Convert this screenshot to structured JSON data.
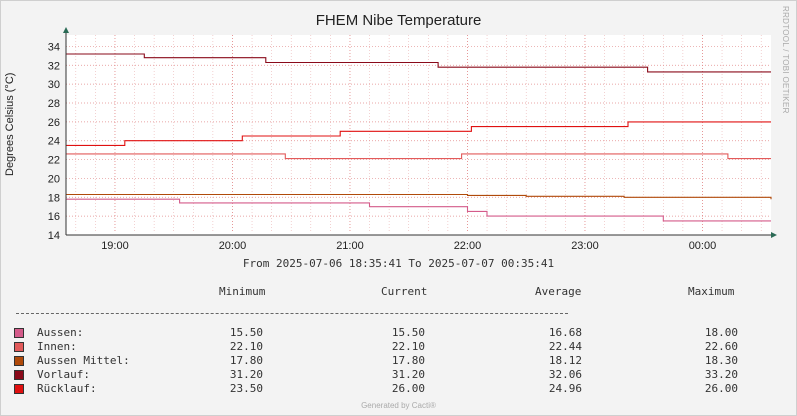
{
  "chart_data": {
    "type": "line",
    "title": "FHEM Nibe Temperature",
    "ylabel": "Degrees Celsius (°C)",
    "ylim": [
      14,
      35
    ],
    "yticks": [
      14,
      16,
      18,
      20,
      22,
      24,
      26,
      28,
      30,
      32,
      34
    ],
    "xlim": [
      "18:35",
      "00:35"
    ],
    "xticks": [
      "19:00",
      "20:00",
      "21:00",
      "22:00",
      "23:00",
      "00:00"
    ],
    "range_label": "From 2025-07-06 18:35:41 To 2025-07-07 00:35:41",
    "grid": true,
    "series": [
      {
        "name": "Aussen",
        "color": "#d45b8a",
        "x": [
          "18:35",
          "19:30",
          "19:33",
          "21:00",
          "21:10",
          "22:00",
          "22:10",
          "23:00",
          "23:40",
          "00:35"
        ],
        "y": [
          17.8,
          17.8,
          17.4,
          17.4,
          17.0,
          16.5,
          16.0,
          16.0,
          15.5,
          15.5
        ]
      },
      {
        "name": "Innen",
        "color": "#e25a5a",
        "x": [
          "18:35",
          "20:20",
          "20:27",
          "21:50",
          "21:57",
          "00:10",
          "00:13",
          "00:35"
        ],
        "y": [
          22.6,
          22.6,
          22.1,
          22.1,
          22.6,
          22.6,
          22.1,
          22.1
        ]
      },
      {
        "name": "Aussen Mittel",
        "color": "#b04a0a",
        "x": [
          "18:35",
          "20:35",
          "22:00",
          "22:30",
          "23:20",
          "00:35"
        ],
        "y": [
          18.3,
          18.3,
          18.2,
          18.1,
          18.0,
          17.8
        ]
      },
      {
        "name": "Vorlauf",
        "color": "#8a0a1a",
        "x": [
          "18:35",
          "19:10",
          "19:15",
          "20:10",
          "20:17",
          "21:40",
          "21:45",
          "23:30",
          "23:32",
          "00:35"
        ],
        "y": [
          33.2,
          33.2,
          32.8,
          32.8,
          32.3,
          32.3,
          31.8,
          31.8,
          31.3,
          31.3
        ]
      },
      {
        "name": "Rücklauf",
        "color": "#e01010",
        "x": [
          "18:35",
          "19:00",
          "19:05",
          "20:00",
          "20:05",
          "20:50",
          "20:55",
          "22:00",
          "22:02",
          "23:20",
          "23:22",
          "00:35"
        ],
        "y": [
          23.5,
          23.5,
          24.0,
          24.0,
          24.5,
          24.5,
          25.0,
          25.0,
          25.5,
          25.5,
          26.0,
          26.0
        ]
      }
    ]
  },
  "legend": {
    "headers": {
      "minimum": "Minimum",
      "current": "Current",
      "average": "Average",
      "maximum": "Maximum"
    },
    "rows": [
      {
        "label": "Aussen:",
        "color": "#d45b8a",
        "min": "15.50",
        "cur": "15.50",
        "avg": "16.68",
        "max": "18.00"
      },
      {
        "label": "Innen:",
        "color": "#e25a5a",
        "min": "22.10",
        "cur": "22.10",
        "avg": "22.44",
        "max": "22.60"
      },
      {
        "label": "Aussen Mittel:",
        "color": "#b04a0a",
        "min": "17.80",
        "cur": "17.80",
        "avg": "18.12",
        "max": "18.30"
      },
      {
        "label": "Vorlauf:",
        "color": "#8a0a1a",
        "min": "31.20",
        "cur": "31.20",
        "avg": "32.06",
        "max": "33.20"
      },
      {
        "label": "Rücklauf:",
        "color": "#e01010",
        "min": "23.50",
        "cur": "26.00",
        "avg": "24.96",
        "max": "26.00"
      }
    ]
  },
  "watermark": "RRDTOOL / TOBI OETIKER",
  "footer": "Generated by Cacti®"
}
